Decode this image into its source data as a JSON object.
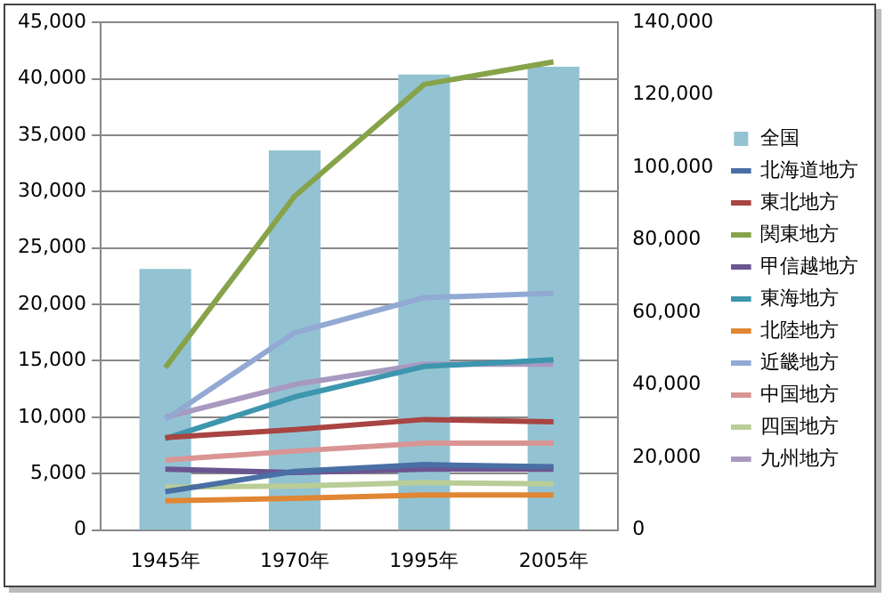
{
  "chart_data": {
    "type": "line",
    "categories": [
      "1945年",
      "1970年",
      "1995年",
      "2005年"
    ],
    "series": [
      {
        "name": "全国",
        "type": "bar",
        "axis": "y2",
        "color": "#93c3d3",
        "values": [
          72000,
          104700,
          125600,
          127800
        ]
      },
      {
        "name": "北海道地方",
        "color": "#4a6fa5",
        "values": [
          3400,
          5200,
          5800,
          5600
        ]
      },
      {
        "name": "東北地方",
        "color": "#a84442",
        "values": [
          8200,
          8900,
          9800,
          9600
        ]
      },
      {
        "name": "関東地方",
        "color": "#87a34a",
        "values": [
          14400,
          29600,
          39500,
          41500
        ]
      },
      {
        "name": "甲信越地方",
        "color": "#6b5591",
        "values": [
          5400,
          5100,
          5400,
          5400
        ]
      },
      {
        "name": "東海地方",
        "color": "#3d96ae",
        "values": [
          8100,
          11800,
          14500,
          15100
        ]
      },
      {
        "name": "北陸地方",
        "color": "#e08634",
        "values": [
          2600,
          2800,
          3100,
          3100
        ]
      },
      {
        "name": "近畿地方",
        "color": "#92a9d4",
        "values": [
          9800,
          17500,
          20600,
          21000
        ]
      },
      {
        "name": "中国地方",
        "color": "#d99594",
        "values": [
          6200,
          7000,
          7700,
          7700
        ]
      },
      {
        "name": "四国地方",
        "color": "#b9cd96",
        "values": [
          3800,
          3900,
          4200,
          4100
        ]
      },
      {
        "name": "九州地方",
        "color": "#a899c0",
        "values": [
          10000,
          12900,
          14700,
          14700
        ]
      }
    ],
    "ylim": [
      0,
      45000
    ],
    "yticks": [
      0,
      {
        "value": 5000,
        "label": "5,000"
      },
      {
        "value": 10000,
        "label": "10,000"
      },
      {
        "value": 15000,
        "label": "15,000"
      },
      {
        "value": 20000,
        "label": "20,000"
      },
      {
        "value": 25000,
        "label": "25,000"
      },
      {
        "value": 30000,
        "label": "30,000"
      },
      {
        "value": 35000,
        "label": "35,000"
      },
      {
        "value": 40000,
        "label": "40,000"
      },
      {
        "value": 45000,
        "label": "45,000"
      }
    ],
    "y2lim": [
      0,
      140000
    ],
    "y2ticks": [
      0,
      {
        "value": 20000,
        "label": "20,000"
      },
      {
        "value": 40000,
        "label": "40,000"
      },
      {
        "value": 60000,
        "label": "60,000"
      },
      {
        "value": 80000,
        "label": "80,000"
      },
      {
        "value": 100000,
        "label": "100,000"
      },
      {
        "value": 120000,
        "label": "120,000"
      },
      {
        "value": 140000,
        "label": "140,000"
      }
    ],
    "grid": "y",
    "legend": "right",
    "marker": "none",
    "line_style": "solid"
  }
}
